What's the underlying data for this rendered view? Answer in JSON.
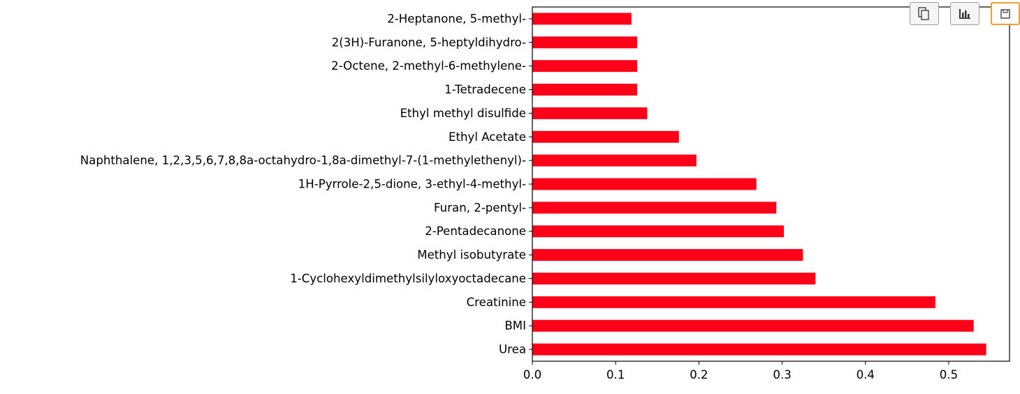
{
  "toolbar": [
    {
      "name": "copy-icon"
    },
    {
      "name": "bar-chart-icon"
    },
    {
      "name": "save-icon"
    }
  ],
  "chart_data": {
    "type": "bar",
    "orientation": "horizontal",
    "categories": [
      "2-Heptanone, 5-methyl-",
      "2(3H)-Furanone, 5-heptyldihydro-",
      "2-Octene, 2-methyl-6-methylene-",
      "1-Tetradecene",
      "Ethyl methyl disulfide",
      "Ethyl Acetate",
      "Naphthalene, 1,2,3,5,6,7,8,8a-octahydro-1,8a-dimethyl-7-(1-methylethenyl)-",
      "1H-Pyrrole-2,5-dione, 3-ethyl-4-methyl-",
      "Furan, 2-pentyl-",
      "2-Pentadecanone",
      "Methyl isobutyrate",
      "1-Cyclohexyldimethylsilyloxyoctadecane",
      "Creatinine",
      "BMI",
      "Urea"
    ],
    "values": [
      0.119,
      0.126,
      0.126,
      0.126,
      0.138,
      0.176,
      0.197,
      0.269,
      0.293,
      0.302,
      0.325,
      0.34,
      0.484,
      0.53,
      0.545
    ],
    "xlim": [
      0.0,
      0.573
    ],
    "xticks": [
      "0.0",
      "0.1",
      "0.2",
      "0.3",
      "0.4",
      "0.5"
    ],
    "bar_color": "#ff0018",
    "title": "",
    "xlabel": "",
    "ylabel": "",
    "grid": false,
    "legend": "none"
  }
}
